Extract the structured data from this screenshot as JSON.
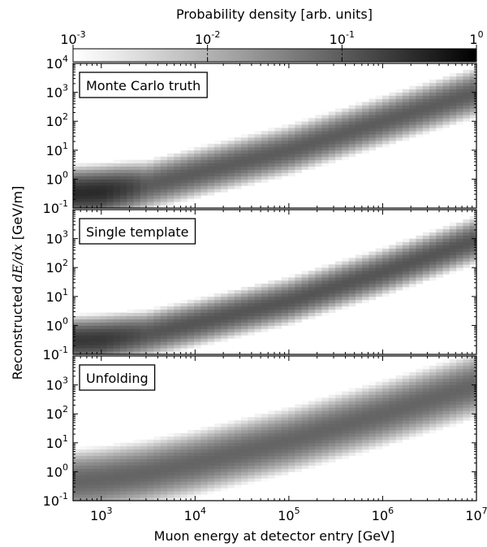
{
  "colorbar": {
    "label": "Probability density [arb. units]",
    "scale": "log",
    "range": [
      0.001,
      1
    ],
    "colormap": [
      "#ffffff",
      "#000000"
    ],
    "ticks": [
      {
        "base": "10",
        "exp": "-3",
        "value": 0.001
      },
      {
        "base": "10",
        "exp": "-2",
        "value": 0.01
      },
      {
        "base": "10",
        "exp": "-1",
        "value": 0.1
      },
      {
        "base": "1",
        "exp": "0",
        "value": 1
      }
    ]
  },
  "axes": {
    "xlabel": "Muon energy at detector entry [GeV]",
    "ylabel_prefix": "Reconstructed ",
    "ylabel_math": "dE/dx",
    "ylabel_suffix": " [GeV/m]"
  },
  "chart_data": [
    {
      "type": "heatmap",
      "title": "Monte Carlo truth",
      "xscale": "log",
      "yscale": "log",
      "xlim": [
        500,
        10000000
      ],
      "ylim": [
        0.1,
        10000
      ],
      "xticks": [
        {
          "base": "10",
          "exp": "3",
          "value": 1000
        },
        {
          "base": "10",
          "exp": "4",
          "value": 10000
        },
        {
          "base": "10",
          "exp": "5",
          "value": 100000
        },
        {
          "base": "10",
          "exp": "6",
          "value": 1000000
        },
        {
          "base": "10",
          "exp": "7",
          "value": 10000000
        }
      ],
      "yticks": [
        {
          "base": "10",
          "exp": "-1",
          "value": 0.1
        },
        {
          "base": "10",
          "exp": "0",
          "value": 1
        },
        {
          "base": "10",
          "exp": "1",
          "value": 10
        },
        {
          "base": "10",
          "exp": "2",
          "value": 100
        },
        {
          "base": "10",
          "exp": "3",
          "value": 1000
        },
        {
          "base": "10",
          "exp": "4",
          "value": 10000
        }
      ],
      "ridge": {
        "x": [
          500,
          1000,
          3000,
          10000,
          100000,
          1000000,
          10000000
        ],
        "y": [
          0.33,
          0.37,
          0.6,
          1.6,
          10,
          100,
          1000
        ]
      },
      "spread_decades": 0.3,
      "peak_density": [
        0.35,
        0.35,
        0.1,
        0.1,
        0.1,
        0.1,
        0.1
      ]
    },
    {
      "type": "heatmap",
      "title": "Single template",
      "xscale": "log",
      "yscale": "log",
      "xlim": [
        500,
        10000000
      ],
      "ylim": [
        0.1,
        10000
      ],
      "xticks": [
        {
          "base": "10",
          "exp": "3",
          "value": 1000
        },
        {
          "base": "10",
          "exp": "4",
          "value": 10000
        },
        {
          "base": "10",
          "exp": "5",
          "value": 100000
        },
        {
          "base": "10",
          "exp": "6",
          "value": 1000000
        },
        {
          "base": "10",
          "exp": "7",
          "value": 10000000
        }
      ],
      "yticks": [
        {
          "base": "10",
          "exp": "-1",
          "value": 0.1
        },
        {
          "base": "10",
          "exp": "0",
          "value": 1
        },
        {
          "base": "10",
          "exp": "1",
          "value": 10
        },
        {
          "base": "10",
          "exp": "2",
          "value": 100
        },
        {
          "base": "10",
          "exp": "3",
          "value": 1000
        }
      ],
      "ridge": {
        "x": [
          500,
          1000,
          3000,
          10000,
          100000,
          1000000,
          10000000
        ],
        "y": [
          0.3,
          0.33,
          0.5,
          1.2,
          7,
          70,
          900
        ]
      },
      "spread_decades": 0.28,
      "peak_density": [
        0.25,
        0.25,
        0.12,
        0.12,
        0.12,
        0.12,
        0.12
      ]
    },
    {
      "type": "heatmap",
      "title": "Unfolding",
      "xscale": "log",
      "yscale": "log",
      "xlim": [
        500,
        10000000
      ],
      "ylim": [
        0.1,
        10000
      ],
      "xticks": [
        {
          "base": "10",
          "exp": "3",
          "value": 1000
        },
        {
          "base": "10",
          "exp": "4",
          "value": 10000
        },
        {
          "base": "10",
          "exp": "5",
          "value": 100000
        },
        {
          "base": "10",
          "exp": "6",
          "value": 1000000
        },
        {
          "base": "10",
          "exp": "7",
          "value": 10000000
        }
      ],
      "yticks": [
        {
          "base": "10",
          "exp": "-1",
          "value": 0.1
        },
        {
          "base": "10",
          "exp": "0",
          "value": 1
        },
        {
          "base": "10",
          "exp": "1",
          "value": 10
        },
        {
          "base": "10",
          "exp": "2",
          "value": 100
        },
        {
          "base": "10",
          "exp": "3",
          "value": 1000
        }
      ],
      "ridge": {
        "x": [
          500,
          1000,
          3000,
          10000,
          100000,
          1000000,
          10000000
        ],
        "y": [
          0.45,
          0.55,
          0.9,
          2,
          12,
          100,
          1000
        ]
      },
      "spread_decades": 0.4,
      "peak_density": [
        0.08,
        0.08,
        0.08,
        0.08,
        0.08,
        0.08,
        0.08
      ]
    }
  ]
}
